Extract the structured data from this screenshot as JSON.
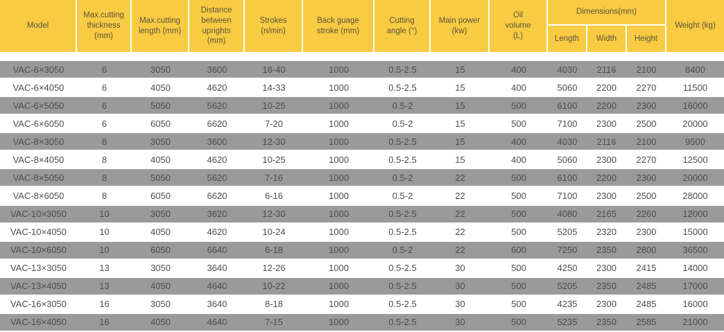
{
  "page": {
    "type": "machine-specification-table"
  },
  "colors": {
    "header_bg": "#F8CB42",
    "header_text": "#5A523E",
    "row_alt_bg": "#9A9A9A",
    "row_bg": "#FFFFFF",
    "body_text": "#4B4B4B"
  },
  "table": {
    "headers": {
      "model": "Model",
      "thickness": "Max.cutting thickness (mm)",
      "length": "Max.cutting length (mm)",
      "distance": "Distance between uprights (mm)",
      "strokes": "Strokes (n/min)",
      "back_gauge": "Back guage stroke (mm)",
      "cutting_angle": "Cutting angle (°)",
      "main_power": "Main power (kw)",
      "oil_volume": "Oil volume (L)",
      "dimensions_group": "Dimensions(mm)",
      "dim_length": "Length",
      "dim_width": "Width",
      "dim_height": "Height",
      "weight": "Weight (kg)"
    },
    "rows": [
      {
        "cells": [
          "VAC-6×3050",
          "6",
          "3050",
          "3600",
          "16-40",
          "1000",
          "0.5-2.5",
          "15",
          "400",
          "4030",
          "2116",
          "2100",
          "8400"
        ]
      },
      {
        "cells": [
          "VAC-6×4050",
          "6",
          "4050",
          "4620",
          "14-33",
          "1000",
          "0.5-2.5",
          "15",
          "400",
          "5060",
          "2200",
          "2270",
          "11500"
        ]
      },
      {
        "cells": [
          "VAC-6×5050",
          "6",
          "5050",
          "5620",
          "10-25",
          "1000",
          "0.5-2",
          "15",
          "500",
          "6100",
          "2200",
          "2300",
          "16000"
        ]
      },
      {
        "cells": [
          "VAC-6×6050",
          "6",
          "6050",
          "6620",
          "7-20",
          "1000",
          "0.5-2",
          "15",
          "500",
          "7100",
          "2300",
          "2500",
          "20000"
        ]
      },
      {
        "cells": [
          "VAC-8×3050",
          "8",
          "3050",
          "3600",
          "12-30",
          "1000",
          "0.5-2.5",
          "15",
          "400",
          "4030",
          "2116",
          "2100",
          "9500"
        ]
      },
      {
        "cells": [
          "VAC-8×4050",
          "8",
          "4050",
          "4620",
          "10-25",
          "1000",
          "0.5-2.5",
          "15",
          "400",
          "5060",
          "2300",
          "2270",
          "12500"
        ]
      },
      {
        "cells": [
          "VAC-8×5050",
          "8",
          "5050",
          "5620",
          "7-16",
          "1000",
          "0.5-2",
          "22",
          "500",
          "6100",
          "2200",
          "2300",
          "20000"
        ]
      },
      {
        "cells": [
          "VAC-8×6050",
          "8",
          "6050",
          "6620",
          "6-16",
          "1000",
          "0.5-2",
          "22",
          "500",
          "7100",
          "2300",
          "2500",
          "28000"
        ]
      },
      {
        "cells": [
          "VAC-10×3050",
          "10",
          "3050",
          "3620",
          "12-30",
          "1000",
          "0.5-2.5",
          "22",
          "500",
          "4080",
          "2165",
          "2260",
          "12000"
        ]
      },
      {
        "cells": [
          "VAC-10×4050",
          "10",
          "4050",
          "4620",
          "10-24",
          "1000",
          "0.5-2.5",
          "22",
          "500",
          "5205",
          "2320",
          "2300",
          "15000"
        ]
      },
      {
        "cells": [
          "VAC-10×6050",
          "10",
          "6050",
          "6640",
          "6-18",
          "1000",
          "0.5-2",
          "22",
          "600",
          "7250",
          "2350",
          "2800",
          "36500"
        ]
      },
      {
        "cells": [
          "VAC-13×3050",
          "13",
          "3050",
          "3640",
          "12-26",
          "1000",
          "0.5-2.5",
          "30",
          "500",
          "4250",
          "2300",
          "2415",
          "14000"
        ]
      },
      {
        "cells": [
          "VAC-13×4050",
          "13",
          "4050",
          "4640",
          "10-22",
          "1000",
          "0.5-2.5",
          "30",
          "500",
          "5205",
          "2350",
          "2485",
          "17000"
        ]
      },
      {
        "cells": [
          "VAC-16×3050",
          "16",
          "3050",
          "3640",
          "8-18",
          "1000",
          "0.5-2.5",
          "30",
          "500",
          "4235",
          "2300",
          "2485",
          "16000"
        ]
      },
      {
        "cells": [
          "VAC-16×4050",
          "16",
          "4050",
          "4640",
          "7-15",
          "1000",
          "0.5-2.5",
          "30",
          "500",
          "5235",
          "2350",
          "2585",
          "21000"
        ]
      }
    ]
  }
}
